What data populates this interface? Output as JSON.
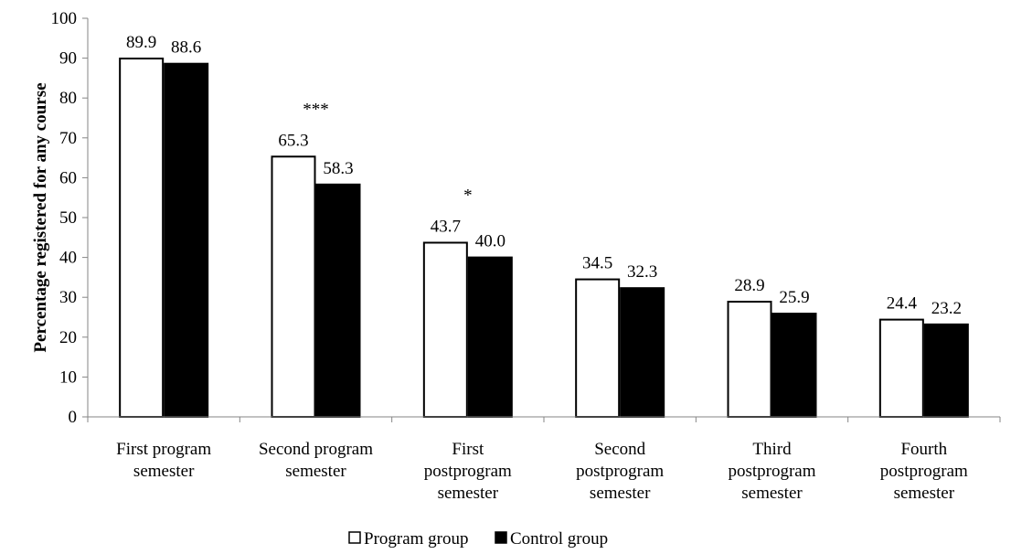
{
  "chart_data": {
    "type": "bar",
    "ylabel": "Percentage registered for any course",
    "ylim": [
      0,
      100
    ],
    "yticks": [
      0,
      10,
      20,
      30,
      40,
      50,
      60,
      70,
      80,
      90,
      100
    ],
    "grid": false,
    "legend_position": "bottom",
    "categories": [
      [
        "First program",
        "semester"
      ],
      [
        "Second program",
        "semester"
      ],
      [
        "First",
        "postprogram",
        "semester"
      ],
      [
        "Second",
        "postprogram",
        "semester"
      ],
      [
        "Third",
        "postprogram",
        "semester"
      ],
      [
        "Fourth",
        "postprogram",
        "semester"
      ]
    ],
    "series": [
      {
        "name": "Program group",
        "values": [
          89.9,
          65.3,
          43.7,
          34.5,
          28.9,
          24.4
        ],
        "color": "#ffffff"
      },
      {
        "name": "Control group",
        "values": [
          88.6,
          58.3,
          40.0,
          32.3,
          25.9,
          23.2
        ],
        "color": "#000000"
      }
    ],
    "data_labels": [
      [
        "89.9",
        "65.3",
        "43.7",
        "34.5",
        "28.9",
        "24.4"
      ],
      [
        "88.6",
        "58.3",
        "40.0",
        "32.3",
        "25.9",
        "23.2"
      ]
    ],
    "significance": [
      "",
      "***",
      "*",
      "",
      "",
      ""
    ]
  }
}
